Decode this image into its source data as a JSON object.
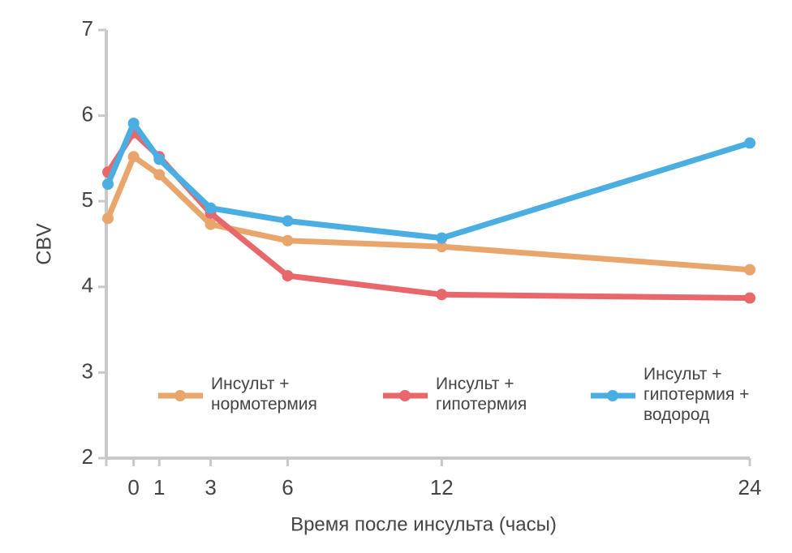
{
  "chart_data": {
    "type": "line",
    "x_label": "Время после инсульта (часы)",
    "y_label": "CBV",
    "x": [
      -1,
      0,
      1,
      3,
      6,
      12,
      24
    ],
    "series": [
      {
        "name": "Инсульт + нормотермия",
        "color": "#e9a66c",
        "values": [
          4.8,
          5.52,
          5.31,
          4.73,
          4.54,
          4.47,
          4.2
        ]
      },
      {
        "name": "Инсульт + гипотермия",
        "color": "#e8676b",
        "values": [
          5.34,
          5.8,
          5.52,
          4.86,
          4.13,
          3.91,
          3.87
        ]
      },
      {
        "name": "Инсульт + гипотермия + водород",
        "color": "#4aaee3",
        "values": [
          5.2,
          5.91,
          5.49,
          4.92,
          4.77,
          4.57,
          5.68
        ]
      }
    ],
    "xlim": [
      -1,
      24
    ],
    "xticks": [
      0,
      1,
      3,
      6,
      12,
      24
    ],
    "ylim": [
      2,
      7
    ],
    "yticks": [
      2,
      3,
      4,
      5,
      6,
      7
    ],
    "legend": "bottom"
  }
}
